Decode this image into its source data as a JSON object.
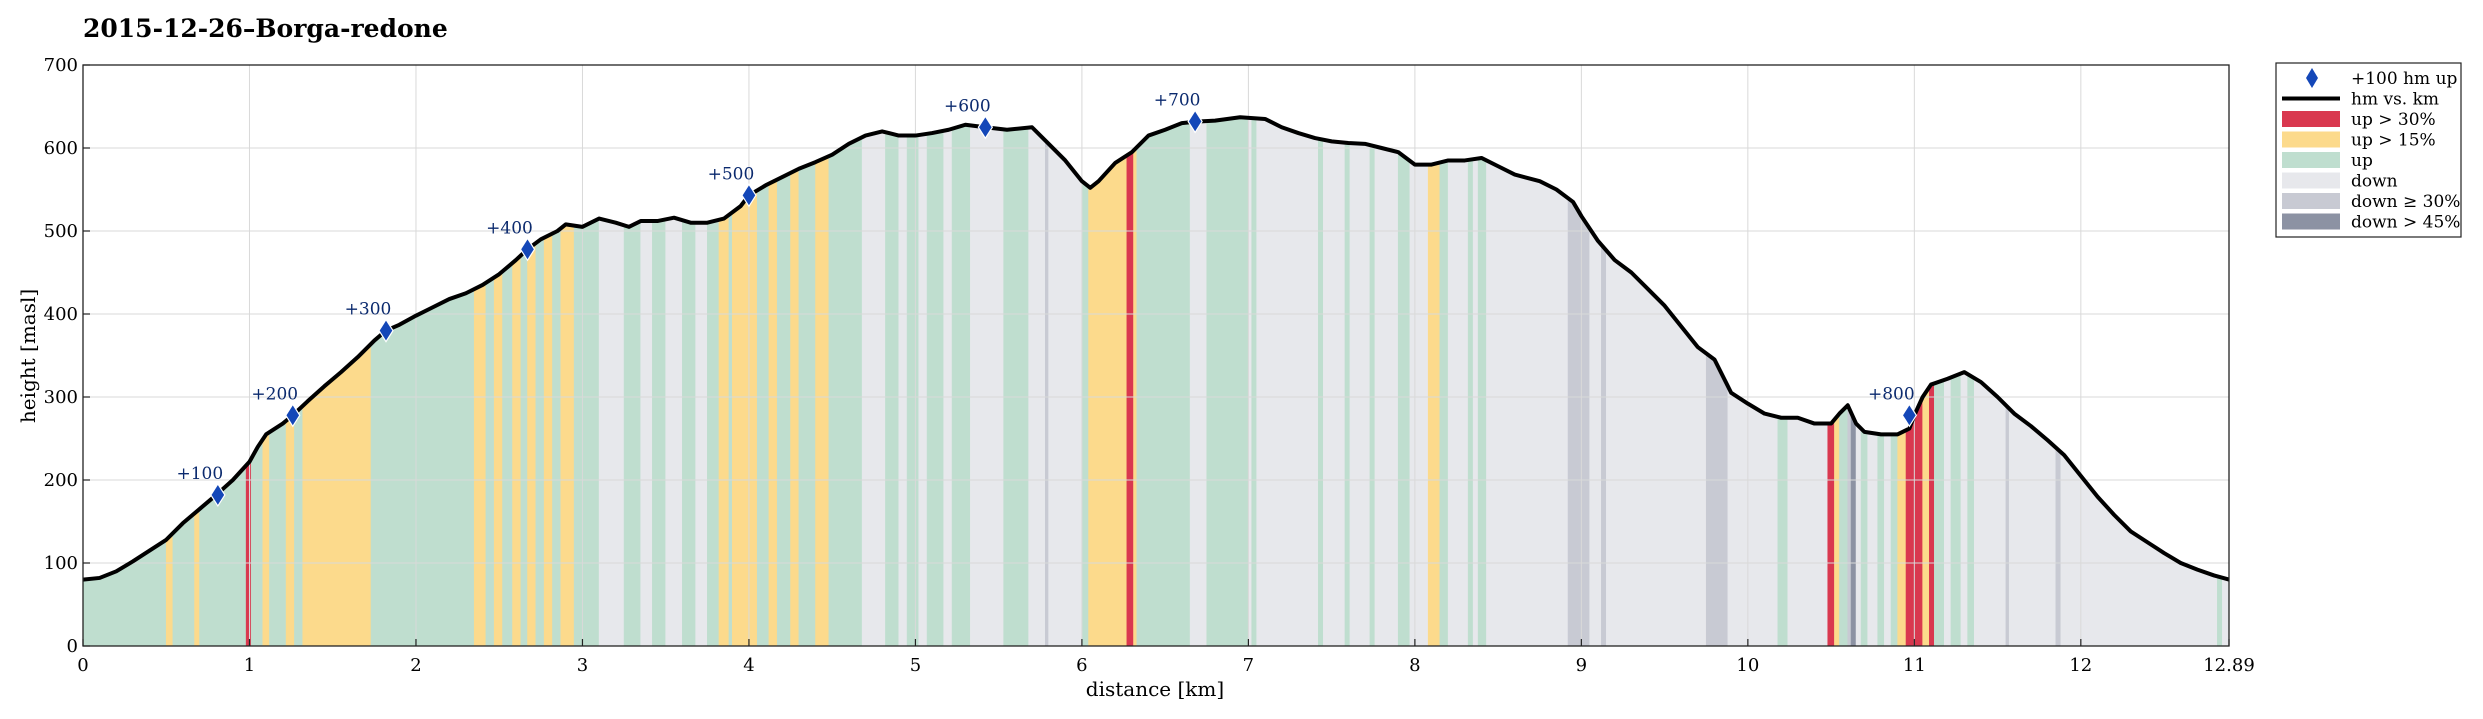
{
  "chart_data": {
    "type": "area",
    "title": "2015-12-26–Borga-redone",
    "xlabel": "distance [km]",
    "ylabel": "height [masl]",
    "xlim": [
      0,
      12.89
    ],
    "ylim": [
      0,
      700
    ],
    "xticks": [
      0,
      1,
      2,
      3,
      4,
      5,
      6,
      7,
      8,
      9,
      10,
      11,
      12,
      12.89
    ],
    "xtick_labels": [
      "0",
      "1",
      "2",
      "3",
      "4",
      "5",
      "6",
      "7",
      "8",
      "9",
      "10",
      "11",
      "12",
      "12.89"
    ],
    "yticks": [
      0,
      100,
      200,
      300,
      400,
      500,
      600,
      700
    ],
    "ytick_labels": [
      "0",
      "100",
      "200",
      "300",
      "400",
      "500",
      "600",
      "700"
    ],
    "grid": true,
    "legend_position": "outside-right",
    "colors": {
      "up_gt_30": "#d9384f",
      "up_gt_15": "#fcda8c",
      "up": "#bfdecf",
      "down": "#e7e8ec",
      "down_ge_30": "#c8cad3",
      "down_gt_45": "#8c92a3",
      "line": "#000000",
      "marker": "#1447b8",
      "grid": "#d9d9d9"
    },
    "legend": [
      {
        "key": "marker",
        "label": "+100 hm up"
      },
      {
        "key": "line",
        "label": "hm vs. km"
      },
      {
        "key": "up_gt_30",
        "label": "up > 30%"
      },
      {
        "key": "up_gt_15",
        "label": "up > 15%"
      },
      {
        "key": "up",
        "label": "up"
      },
      {
        "key": "down",
        "label": "down"
      },
      {
        "key": "down_ge_30",
        "label": "down ≥ 30%"
      },
      {
        "key": "down_gt_45",
        "label": "down > 45%"
      }
    ],
    "profile": [
      [
        0,
        80
      ],
      [
        0.1,
        82
      ],
      [
        0.2,
        90
      ],
      [
        0.3,
        102
      ],
      [
        0.4,
        115
      ],
      [
        0.5,
        128
      ],
      [
        0.6,
        148
      ],
      [
        0.7,
        165
      ],
      [
        0.8,
        182
      ],
      [
        0.9,
        200
      ],
      [
        1.0,
        222
      ],
      [
        1.05,
        240
      ],
      [
        1.1,
        255
      ],
      [
        1.2,
        268
      ],
      [
        1.26,
        278
      ],
      [
        1.35,
        295
      ],
      [
        1.45,
        313
      ],
      [
        1.55,
        330
      ],
      [
        1.65,
        348
      ],
      [
        1.75,
        368
      ],
      [
        1.82,
        380
      ],
      [
        1.9,
        387
      ],
      [
        2.0,
        398
      ],
      [
        2.1,
        408
      ],
      [
        2.2,
        418
      ],
      [
        2.3,
        425
      ],
      [
        2.4,
        435
      ],
      [
        2.5,
        448
      ],
      [
        2.6,
        465
      ],
      [
        2.67,
        478
      ],
      [
        2.75,
        490
      ],
      [
        2.85,
        500
      ],
      [
        2.9,
        508
      ],
      [
        3.0,
        505
      ],
      [
        3.1,
        515
      ],
      [
        3.2,
        510
      ],
      [
        3.28,
        505
      ],
      [
        3.35,
        512
      ],
      [
        3.45,
        512
      ],
      [
        3.55,
        516
      ],
      [
        3.65,
        510
      ],
      [
        3.75,
        510
      ],
      [
        3.85,
        515
      ],
      [
        3.95,
        530
      ],
      [
        4.0,
        543
      ],
      [
        4.1,
        555
      ],
      [
        4.2,
        565
      ],
      [
        4.3,
        575
      ],
      [
        4.4,
        583
      ],
      [
        4.5,
        592
      ],
      [
        4.6,
        605
      ],
      [
        4.7,
        615
      ],
      [
        4.8,
        620
      ],
      [
        4.9,
        615
      ],
      [
        5.0,
        615
      ],
      [
        5.1,
        618
      ],
      [
        5.2,
        622
      ],
      [
        5.3,
        628
      ],
      [
        5.42,
        625
      ],
      [
        5.55,
        622
      ],
      [
        5.7,
        625
      ],
      [
        5.8,
        605
      ],
      [
        5.9,
        585
      ],
      [
        6.0,
        560
      ],
      [
        6.05,
        552
      ],
      [
        6.1,
        560
      ],
      [
        6.2,
        582
      ],
      [
        6.3,
        595
      ],
      [
        6.4,
        615
      ],
      [
        6.5,
        622
      ],
      [
        6.6,
        630
      ],
      [
        6.7,
        632
      ],
      [
        6.8,
        633
      ],
      [
        6.95,
        637
      ],
      [
        7.1,
        635
      ],
      [
        7.2,
        625
      ],
      [
        7.3,
        618
      ],
      [
        7.4,
        612
      ],
      [
        7.5,
        608
      ],
      [
        7.6,
        606
      ],
      [
        7.7,
        605
      ],
      [
        7.8,
        600
      ],
      [
        7.9,
        595
      ],
      [
        8.0,
        580
      ],
      [
        8.1,
        580
      ],
      [
        8.2,
        585
      ],
      [
        8.3,
        585
      ],
      [
        8.4,
        588
      ],
      [
        8.5,
        578
      ],
      [
        8.6,
        568
      ],
      [
        8.75,
        560
      ],
      [
        8.85,
        550
      ],
      [
        8.95,
        535
      ],
      [
        9.0,
        518
      ],
      [
        9.1,
        488
      ],
      [
        9.2,
        465
      ],
      [
        9.3,
        450
      ],
      [
        9.4,
        430
      ],
      [
        9.5,
        410
      ],
      [
        9.6,
        385
      ],
      [
        9.7,
        360
      ],
      [
        9.8,
        345
      ],
      [
        9.9,
        305
      ],
      [
        10.0,
        292
      ],
      [
        10.1,
        280
      ],
      [
        10.2,
        275
      ],
      [
        10.3,
        275
      ],
      [
        10.4,
        268
      ],
      [
        10.5,
        268
      ],
      [
        10.55,
        280
      ],
      [
        10.6,
        290
      ],
      [
        10.65,
        268
      ],
      [
        10.7,
        258
      ],
      [
        10.8,
        255
      ],
      [
        10.9,
        255
      ],
      [
        10.97,
        262
      ],
      [
        11.0,
        278
      ],
      [
        11.05,
        300
      ],
      [
        11.1,
        315
      ],
      [
        11.2,
        322
      ],
      [
        11.3,
        330
      ],
      [
        11.4,
        318
      ],
      [
        11.5,
        300
      ],
      [
        11.6,
        280
      ],
      [
        11.7,
        265
      ],
      [
        11.8,
        248
      ],
      [
        11.9,
        230
      ],
      [
        12.0,
        205
      ],
      [
        12.1,
        180
      ],
      [
        12.2,
        158
      ],
      [
        12.3,
        138
      ],
      [
        12.4,
        125
      ],
      [
        12.5,
        112
      ],
      [
        12.6,
        100
      ],
      [
        12.7,
        92
      ],
      [
        12.8,
        85
      ],
      [
        12.89,
        80
      ]
    ],
    "segments": [
      [
        0,
        0.5,
        "up"
      ],
      [
        0.5,
        0.54,
        "up_gt_15"
      ],
      [
        0.54,
        0.67,
        "up"
      ],
      [
        0.67,
        0.7,
        "up_gt_15"
      ],
      [
        0.7,
        0.98,
        "up"
      ],
      [
        0.98,
        1.01,
        "up_gt_30"
      ],
      [
        1.01,
        1.08,
        "up"
      ],
      [
        1.08,
        1.12,
        "up_gt_15"
      ],
      [
        1.12,
        1.22,
        "up"
      ],
      [
        1.22,
        1.27,
        "up_gt_15"
      ],
      [
        1.27,
        1.32,
        "up"
      ],
      [
        1.32,
        1.73,
        "up_gt_15"
      ],
      [
        1.73,
        2.35,
        "up"
      ],
      [
        2.35,
        2.42,
        "up_gt_15"
      ],
      [
        2.42,
        2.47,
        "up"
      ],
      [
        2.47,
        2.52,
        "up_gt_15"
      ],
      [
        2.52,
        2.58,
        "up"
      ],
      [
        2.58,
        2.63,
        "up_gt_15"
      ],
      [
        2.63,
        2.67,
        "up"
      ],
      [
        2.67,
        2.72,
        "up_gt_15"
      ],
      [
        2.72,
        2.77,
        "up"
      ],
      [
        2.77,
        2.82,
        "up_gt_15"
      ],
      [
        2.82,
        2.87,
        "up"
      ],
      [
        2.87,
        2.95,
        "up_gt_15"
      ],
      [
        2.95,
        3.1,
        "up"
      ],
      [
        3.1,
        3.25,
        "down"
      ],
      [
        3.25,
        3.35,
        "up"
      ],
      [
        3.35,
        3.42,
        "down"
      ],
      [
        3.42,
        3.5,
        "up"
      ],
      [
        3.5,
        3.6,
        "down"
      ],
      [
        3.6,
        3.68,
        "up"
      ],
      [
        3.68,
        3.75,
        "down"
      ],
      [
        3.75,
        3.82,
        "up"
      ],
      [
        3.82,
        3.88,
        "up_gt_15"
      ],
      [
        3.88,
        3.9,
        "up"
      ],
      [
        3.9,
        4.05,
        "up_gt_15"
      ],
      [
        4.05,
        4.12,
        "up"
      ],
      [
        4.12,
        4.17,
        "up_gt_15"
      ],
      [
        4.17,
        4.25,
        "up"
      ],
      [
        4.25,
        4.3,
        "up_gt_15"
      ],
      [
        4.3,
        4.4,
        "up"
      ],
      [
        4.4,
        4.48,
        "up_gt_15"
      ],
      [
        4.48,
        4.68,
        "up"
      ],
      [
        4.68,
        4.82,
        "down"
      ],
      [
        4.82,
        4.9,
        "up"
      ],
      [
        4.9,
        4.95,
        "down"
      ],
      [
        4.95,
        5.02,
        "up"
      ],
      [
        5.02,
        5.07,
        "down"
      ],
      [
        5.07,
        5.17,
        "up"
      ],
      [
        5.17,
        5.22,
        "down"
      ],
      [
        5.22,
        5.33,
        "up"
      ],
      [
        5.33,
        5.53,
        "down"
      ],
      [
        5.53,
        5.68,
        "up"
      ],
      [
        5.68,
        5.78,
        "down"
      ],
      [
        5.78,
        5.8,
        "down_ge_30"
      ],
      [
        5.8,
        6.0,
        "down"
      ],
      [
        6.0,
        6.04,
        "up"
      ],
      [
        6.04,
        6.27,
        "up_gt_15"
      ],
      [
        6.27,
        6.31,
        "up_gt_30"
      ],
      [
        6.31,
        6.33,
        "up_gt_15"
      ],
      [
        6.33,
        6.65,
        "up"
      ],
      [
        6.65,
        6.75,
        "down"
      ],
      [
        6.75,
        7.0,
        "up"
      ],
      [
        7.0,
        7.02,
        "down"
      ],
      [
        7.02,
        7.05,
        "up"
      ],
      [
        7.05,
        7.42,
        "down"
      ],
      [
        7.42,
        7.45,
        "up"
      ],
      [
        7.45,
        7.58,
        "down"
      ],
      [
        7.58,
        7.61,
        "up"
      ],
      [
        7.61,
        7.73,
        "down"
      ],
      [
        7.73,
        7.76,
        "up"
      ],
      [
        7.76,
        7.9,
        "down"
      ],
      [
        7.9,
        7.97,
        "up"
      ],
      [
        7.97,
        8.08,
        "down"
      ],
      [
        8.08,
        8.15,
        "up_gt_15"
      ],
      [
        8.15,
        8.2,
        "up"
      ],
      [
        8.2,
        8.32,
        "down"
      ],
      [
        8.32,
        8.35,
        "up"
      ],
      [
        8.35,
        8.38,
        "down"
      ],
      [
        8.38,
        8.43,
        "up"
      ],
      [
        8.43,
        8.92,
        "down"
      ],
      [
        8.92,
        9.05,
        "down_ge_30"
      ],
      [
        9.05,
        9.12,
        "down"
      ],
      [
        9.12,
        9.15,
        "down_ge_30"
      ],
      [
        9.15,
        9.75,
        "down"
      ],
      [
        9.75,
        9.88,
        "down_ge_30"
      ],
      [
        9.88,
        10.18,
        "down"
      ],
      [
        10.18,
        10.24,
        "up"
      ],
      [
        10.24,
        10.48,
        "down"
      ],
      [
        10.48,
        10.52,
        "up_gt_30"
      ],
      [
        10.52,
        10.55,
        "up_gt_15"
      ],
      [
        10.55,
        10.6,
        "up"
      ],
      [
        10.6,
        10.62,
        "down_ge_30"
      ],
      [
        10.62,
        10.65,
        "down_gt_45"
      ],
      [
        10.65,
        10.68,
        "down"
      ],
      [
        10.68,
        10.72,
        "up"
      ],
      [
        10.72,
        10.78,
        "down"
      ],
      [
        10.78,
        10.82,
        "up"
      ],
      [
        10.82,
        10.86,
        "down"
      ],
      [
        10.86,
        10.9,
        "up"
      ],
      [
        10.9,
        10.95,
        "up_gt_15"
      ],
      [
        10.95,
        11.05,
        "up_gt_30"
      ],
      [
        11.05,
        11.09,
        "up_gt_15"
      ],
      [
        11.09,
        11.12,
        "up_gt_30"
      ],
      [
        11.12,
        11.18,
        "up"
      ],
      [
        11.18,
        11.22,
        "down"
      ],
      [
        11.22,
        11.28,
        "up"
      ],
      [
        11.28,
        11.32,
        "down"
      ],
      [
        11.32,
        11.36,
        "up"
      ],
      [
        11.36,
        11.55,
        "down"
      ],
      [
        11.55,
        11.57,
        "down_ge_30"
      ],
      [
        11.57,
        11.85,
        "down"
      ],
      [
        11.85,
        11.88,
        "down_ge_30"
      ],
      [
        11.88,
        12.82,
        "down"
      ],
      [
        12.82,
        12.85,
        "up"
      ],
      [
        12.85,
        12.89,
        "down"
      ]
    ],
    "markers": [
      {
        "x": 0.81,
        "y": 182,
        "label": "+100"
      },
      {
        "x": 1.26,
        "y": 278,
        "label": "+200"
      },
      {
        "x": 1.82,
        "y": 380,
        "label": "+300"
      },
      {
        "x": 2.67,
        "y": 478,
        "label": "+400"
      },
      {
        "x": 4.0,
        "y": 543,
        "label": "+500"
      },
      {
        "x": 5.42,
        "y": 625,
        "label": "+600"
      },
      {
        "x": 6.68,
        "y": 632,
        "label": "+700"
      },
      {
        "x": 10.97,
        "y": 278,
        "label": "+800"
      }
    ]
  }
}
